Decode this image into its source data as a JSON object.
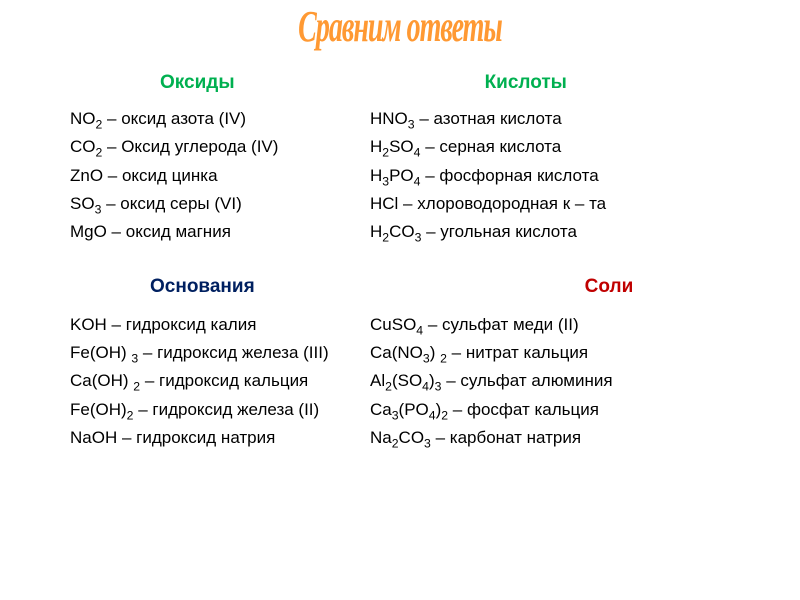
{
  "title": "Сравним ответы",
  "colors": {
    "title": "#ff9933",
    "oxides_acids_header": "#00b050",
    "bases_header": "#002060",
    "salts_header": "#c00000",
    "text": "#000000",
    "background": "#ffffff"
  },
  "fonts": {
    "title_family": "Times New Roman",
    "title_style": "italic bold",
    "title_size_pt": 28,
    "body_family": "Arial",
    "body_size_pt": 17,
    "header_size_pt": 19
  },
  "headers": {
    "oxides": "Оксиды",
    "acids": "Кислоты",
    "bases": "Основания",
    "salts": "Соли"
  },
  "block1": [
    {
      "left_html": "NO<sub>2</sub> – оксид азота (IV)",
      "right_html": "HNO<sub>3</sub> – азотная кислота"
    },
    {
      "left_html": "CO<sub>2</sub> – Оксид углерода (IV)",
      "right_html": "H<sub>2</sub>SO<sub>4</sub> – серная кислота"
    },
    {
      "left_html": "ZnO – оксид цинка",
      "right_html": "H<sub>3</sub>PO<sub>4</sub> – фосфорная кислота"
    },
    {
      "left_html": "SO<sub>3</sub> – оксид серы (VI)",
      "right_html": "HCl – хлороводородная к – та"
    },
    {
      "left_html": "MgO – оксид магния",
      "right_html": "H<sub>2</sub>CO<sub>3</sub> – угольная кислота"
    }
  ],
  "block2": [
    {
      "left_html": "KOH – гидроксид калия",
      "right_html": "CuSO<sub>4</sub> – сульфат меди (II)"
    },
    {
      "left_html": "Fe(OH) <sub>3</sub> – гидроксид железа (III)",
      "right_html": "Ca(NO<sub>3</sub>) <sub>2</sub> – нитрат кальция"
    },
    {
      "left_html": "Ca(OH) <sub>2</sub> – гидроксид кальция",
      "right_html": "Al<sub>2</sub>(SO<sub>4</sub>)<sub>3</sub> – сульфат алюминия"
    },
    {
      "left_html": "Fe(OH)<sub>2</sub> – гидроксид железа (II)",
      "right_html": "Ca<sub>3</sub>(PO<sub>4</sub>)<sub>2</sub> – фосфат кальция"
    },
    {
      "left_html": "NaOH – гидроксид натрия",
      "right_html": "Na<sub>2</sub>CO<sub>3</sub> – карбонат натрия"
    }
  ]
}
